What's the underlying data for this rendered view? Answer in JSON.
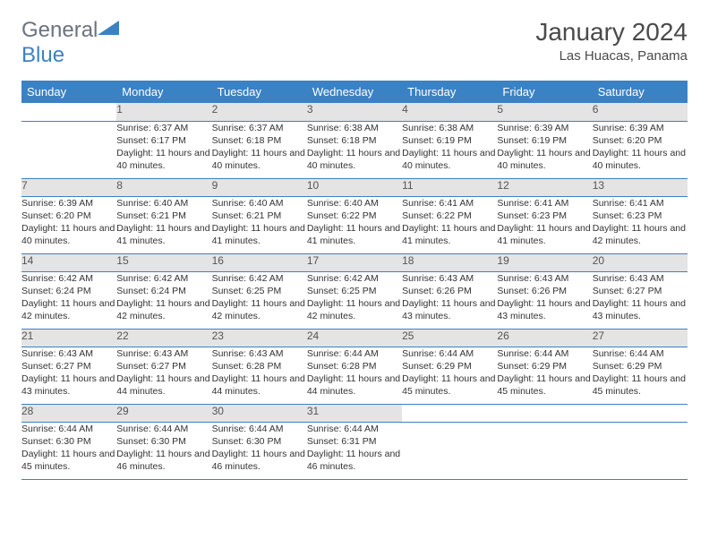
{
  "logo": {
    "text_general": "General",
    "text_blue": "Blue"
  },
  "title": "January 2024",
  "location": "Las Huacas, Panama",
  "colors": {
    "header_bg": "#3b82c4",
    "header_fg": "#ffffff",
    "daynum_bg": "#e4e4e4",
    "row_divider": "#3b82c4",
    "logo_gray": "#6b7280",
    "logo_blue": "#3b82c4",
    "text": "#333333"
  },
  "weekdays": [
    "Sunday",
    "Monday",
    "Tuesday",
    "Wednesday",
    "Thursday",
    "Friday",
    "Saturday"
  ],
  "weeks": [
    {
      "days": [
        {
          "n": "",
          "sunrise": "",
          "sunset": "",
          "daylight": ""
        },
        {
          "n": "1",
          "sunrise": "6:37 AM",
          "sunset": "6:17 PM",
          "daylight": "11 hours and 40 minutes."
        },
        {
          "n": "2",
          "sunrise": "6:37 AM",
          "sunset": "6:18 PM",
          "daylight": "11 hours and 40 minutes."
        },
        {
          "n": "3",
          "sunrise": "6:38 AM",
          "sunset": "6:18 PM",
          "daylight": "11 hours and 40 minutes."
        },
        {
          "n": "4",
          "sunrise": "6:38 AM",
          "sunset": "6:19 PM",
          "daylight": "11 hours and 40 minutes."
        },
        {
          "n": "5",
          "sunrise": "6:39 AM",
          "sunset": "6:19 PM",
          "daylight": "11 hours and 40 minutes."
        },
        {
          "n": "6",
          "sunrise": "6:39 AM",
          "sunset": "6:20 PM",
          "daylight": "11 hours and 40 minutes."
        }
      ]
    },
    {
      "days": [
        {
          "n": "7",
          "sunrise": "6:39 AM",
          "sunset": "6:20 PM",
          "daylight": "11 hours and 40 minutes."
        },
        {
          "n": "8",
          "sunrise": "6:40 AM",
          "sunset": "6:21 PM",
          "daylight": "11 hours and 41 minutes."
        },
        {
          "n": "9",
          "sunrise": "6:40 AM",
          "sunset": "6:21 PM",
          "daylight": "11 hours and 41 minutes."
        },
        {
          "n": "10",
          "sunrise": "6:40 AM",
          "sunset": "6:22 PM",
          "daylight": "11 hours and 41 minutes."
        },
        {
          "n": "11",
          "sunrise": "6:41 AM",
          "sunset": "6:22 PM",
          "daylight": "11 hours and 41 minutes."
        },
        {
          "n": "12",
          "sunrise": "6:41 AM",
          "sunset": "6:23 PM",
          "daylight": "11 hours and 41 minutes."
        },
        {
          "n": "13",
          "sunrise": "6:41 AM",
          "sunset": "6:23 PM",
          "daylight": "11 hours and 42 minutes."
        }
      ]
    },
    {
      "days": [
        {
          "n": "14",
          "sunrise": "6:42 AM",
          "sunset": "6:24 PM",
          "daylight": "11 hours and 42 minutes."
        },
        {
          "n": "15",
          "sunrise": "6:42 AM",
          "sunset": "6:24 PM",
          "daylight": "11 hours and 42 minutes."
        },
        {
          "n": "16",
          "sunrise": "6:42 AM",
          "sunset": "6:25 PM",
          "daylight": "11 hours and 42 minutes."
        },
        {
          "n": "17",
          "sunrise": "6:42 AM",
          "sunset": "6:25 PM",
          "daylight": "11 hours and 42 minutes."
        },
        {
          "n": "18",
          "sunrise": "6:43 AM",
          "sunset": "6:26 PM",
          "daylight": "11 hours and 43 minutes."
        },
        {
          "n": "19",
          "sunrise": "6:43 AM",
          "sunset": "6:26 PM",
          "daylight": "11 hours and 43 minutes."
        },
        {
          "n": "20",
          "sunrise": "6:43 AM",
          "sunset": "6:27 PM",
          "daylight": "11 hours and 43 minutes."
        }
      ]
    },
    {
      "days": [
        {
          "n": "21",
          "sunrise": "6:43 AM",
          "sunset": "6:27 PM",
          "daylight": "11 hours and 43 minutes."
        },
        {
          "n": "22",
          "sunrise": "6:43 AM",
          "sunset": "6:27 PM",
          "daylight": "11 hours and 44 minutes."
        },
        {
          "n": "23",
          "sunrise": "6:43 AM",
          "sunset": "6:28 PM",
          "daylight": "11 hours and 44 minutes."
        },
        {
          "n": "24",
          "sunrise": "6:44 AM",
          "sunset": "6:28 PM",
          "daylight": "11 hours and 44 minutes."
        },
        {
          "n": "25",
          "sunrise": "6:44 AM",
          "sunset": "6:29 PM",
          "daylight": "11 hours and 45 minutes."
        },
        {
          "n": "26",
          "sunrise": "6:44 AM",
          "sunset": "6:29 PM",
          "daylight": "11 hours and 45 minutes."
        },
        {
          "n": "27",
          "sunrise": "6:44 AM",
          "sunset": "6:29 PM",
          "daylight": "11 hours and 45 minutes."
        }
      ]
    },
    {
      "days": [
        {
          "n": "28",
          "sunrise": "6:44 AM",
          "sunset": "6:30 PM",
          "daylight": "11 hours and 45 minutes."
        },
        {
          "n": "29",
          "sunrise": "6:44 AM",
          "sunset": "6:30 PM",
          "daylight": "11 hours and 46 minutes."
        },
        {
          "n": "30",
          "sunrise": "6:44 AM",
          "sunset": "6:30 PM",
          "daylight": "11 hours and 46 minutes."
        },
        {
          "n": "31",
          "sunrise": "6:44 AM",
          "sunset": "6:31 PM",
          "daylight": "11 hours and 46 minutes."
        },
        {
          "n": "",
          "sunrise": "",
          "sunset": "",
          "daylight": ""
        },
        {
          "n": "",
          "sunrise": "",
          "sunset": "",
          "daylight": ""
        },
        {
          "n": "",
          "sunrise": "",
          "sunset": "",
          "daylight": ""
        }
      ]
    }
  ],
  "labels": {
    "sunrise": "Sunrise:",
    "sunset": "Sunset:",
    "daylight": "Daylight:"
  }
}
